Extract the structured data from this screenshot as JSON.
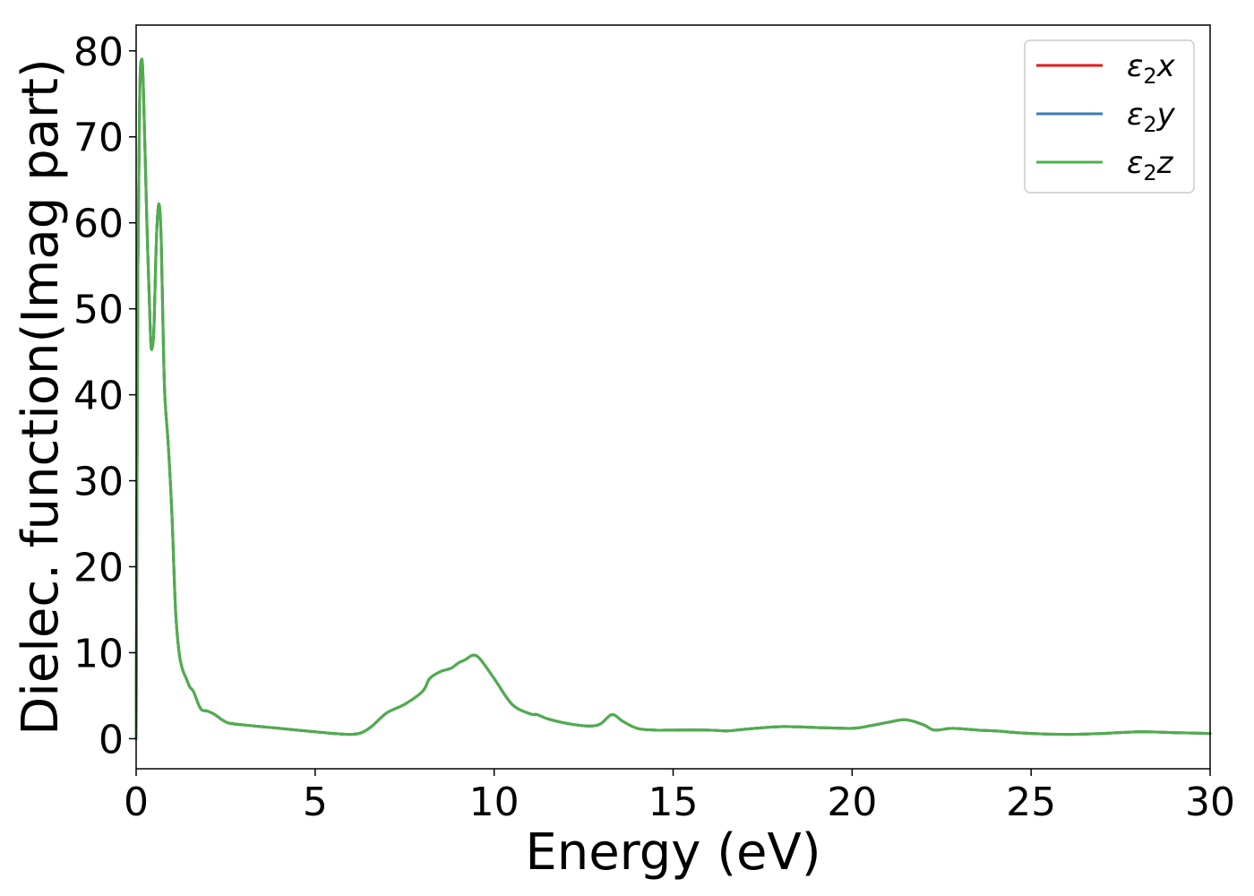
{
  "chart_data": {
    "type": "line",
    "xlabel": "Energy (eV)",
    "ylabel": "Dielec. function(Imag part)",
    "xlim": [
      0,
      30
    ],
    "ylim": [
      -3.5,
      83
    ],
    "xticks": [
      0,
      5,
      10,
      15,
      20,
      25,
      30
    ],
    "yticks": [
      0,
      10,
      20,
      30,
      40,
      50,
      60,
      70,
      80
    ],
    "grid": false,
    "legend_position": "top-right",
    "x": [
      0,
      0.05,
      0.1,
      0.15,
      0.2,
      0.3,
      0.4,
      0.45,
      0.5,
      0.55,
      0.6,
      0.65,
      0.7,
      0.75,
      0.8,
      0.9,
      1.0,
      1.1,
      1.2,
      1.3,
      1.4,
      1.5,
      1.6,
      1.8,
      2.0,
      2.2,
      2.4,
      2.6,
      3.0,
      3.5,
      4.0,
      4.5,
      5.0,
      5.5,
      6.0,
      6.3,
      6.6,
      7.0,
      7.5,
      8.0,
      8.2,
      8.5,
      8.8,
      9.0,
      9.2,
      9.4,
      9.6,
      10.0,
      10.5,
      11.0,
      11.2,
      11.5,
      12.0,
      12.5,
      12.8,
      13.0,
      13.3,
      13.6,
      14.0,
      14.5,
      15.0,
      16.0,
      16.5,
      17.0,
      18.0,
      19.0,
      20.0,
      20.5,
      21.0,
      21.5,
      22.0,
      22.3,
      22.8,
      23.5,
      24.0,
      25.0,
      26.0,
      27.0,
      28.0,
      29.0,
      30.0
    ],
    "series": [
      {
        "name": "ε₂x",
        "label_base": "ε",
        "label_sub": "2",
        "label_suffix": "x",
        "color": "#e41a1c",
        "values": [
          0,
          55,
          75,
          79,
          76,
          60,
          47,
          45.5,
          48,
          56,
          61,
          62,
          58,
          48,
          40,
          34,
          26,
          15,
          10,
          8,
          7,
          6,
          5.5,
          3.5,
          3.2,
          2.8,
          2.2,
          1.8,
          1.6,
          1.4,
          1.2,
          1.0,
          0.8,
          0.6,
          0.5,
          0.7,
          1.5,
          3.0,
          4.0,
          5.5,
          7.0,
          7.8,
          8.2,
          8.8,
          9.2,
          9.7,
          9.3,
          7.0,
          4.0,
          2.9,
          2.8,
          2.3,
          1.8,
          1.5,
          1.5,
          1.8,
          2.8,
          2.0,
          1.2,
          1.0,
          1.0,
          1.0,
          0.9,
          1.1,
          1.4,
          1.3,
          1.2,
          1.5,
          1.9,
          2.2,
          1.6,
          1.0,
          1.2,
          1.0,
          0.9,
          0.6,
          0.5,
          0.6,
          0.8,
          0.7,
          0.6
        ]
      },
      {
        "name": "ε₂y",
        "label_base": "ε",
        "label_sub": "2",
        "label_suffix": "y",
        "color": "#377eb8",
        "values": [
          0,
          55,
          75,
          79,
          76,
          60,
          47,
          45.5,
          48,
          56,
          61,
          62,
          58,
          48,
          40,
          34,
          26,
          15,
          10,
          8,
          7,
          6,
          5.5,
          3.5,
          3.2,
          2.8,
          2.2,
          1.8,
          1.6,
          1.4,
          1.2,
          1.0,
          0.8,
          0.6,
          0.5,
          0.7,
          1.5,
          3.0,
          4.0,
          5.5,
          7.0,
          7.8,
          8.2,
          8.8,
          9.2,
          9.7,
          9.3,
          7.0,
          4.0,
          2.9,
          2.8,
          2.3,
          1.8,
          1.5,
          1.5,
          1.8,
          2.8,
          2.0,
          1.2,
          1.0,
          1.0,
          1.0,
          0.9,
          1.1,
          1.4,
          1.3,
          1.2,
          1.5,
          1.9,
          2.2,
          1.6,
          1.0,
          1.2,
          1.0,
          0.9,
          0.6,
          0.5,
          0.6,
          0.8,
          0.7,
          0.6
        ]
      },
      {
        "name": "ε₂z",
        "label_base": "ε",
        "label_sub": "2",
        "label_suffix": "z",
        "color": "#4daf4a",
        "values": [
          0,
          55,
          75,
          79,
          76,
          60,
          47,
          45.5,
          48,
          56,
          61,
          62,
          58,
          48,
          40,
          34,
          26,
          15,
          10,
          8,
          7,
          6,
          5.5,
          3.5,
          3.2,
          2.8,
          2.2,
          1.8,
          1.6,
          1.4,
          1.2,
          1.0,
          0.8,
          0.6,
          0.5,
          0.7,
          1.5,
          3.0,
          4.0,
          5.5,
          7.0,
          7.8,
          8.2,
          8.8,
          9.2,
          9.7,
          9.3,
          7.0,
          4.0,
          2.9,
          2.8,
          2.3,
          1.8,
          1.5,
          1.5,
          1.8,
          2.8,
          2.0,
          1.2,
          1.0,
          1.0,
          1.0,
          0.9,
          1.1,
          1.4,
          1.3,
          1.2,
          1.5,
          1.9,
          2.2,
          1.6,
          1.0,
          1.2,
          1.0,
          0.9,
          0.6,
          0.5,
          0.6,
          0.8,
          0.7,
          0.6
        ]
      }
    ]
  }
}
